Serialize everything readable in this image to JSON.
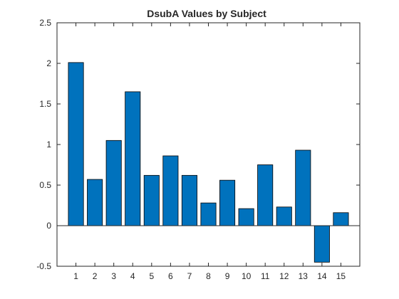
{
  "chart_data": {
    "type": "bar",
    "title": "DsubA Values by Subject",
    "xlabel": "",
    "ylabel": "",
    "categories": [
      "1",
      "2",
      "3",
      "4",
      "5",
      "6",
      "7",
      "8",
      "9",
      "10",
      "11",
      "12",
      "13",
      "14",
      "15"
    ],
    "values": [
      2.01,
      0.57,
      1.05,
      1.65,
      0.62,
      0.86,
      0.62,
      0.28,
      0.56,
      0.21,
      0.75,
      0.23,
      0.93,
      -0.45,
      0.16
    ],
    "ylim": [
      -0.5,
      2.5
    ],
    "yticks": [
      "-0.5",
      "0",
      "0.5",
      "1",
      "1.5",
      "2",
      "2.5"
    ],
    "xlim": [
      0,
      16
    ],
    "grid": false,
    "legend": "none",
    "bar_color": "#0072BD",
    "edge_color": "#000000"
  }
}
